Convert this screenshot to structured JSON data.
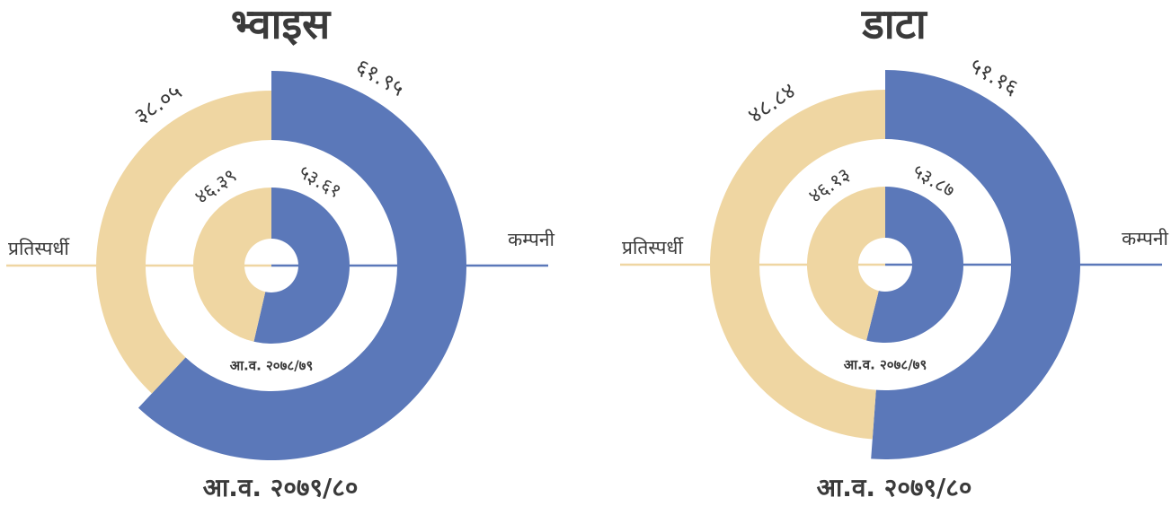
{
  "chart_data": [
    {
      "type": "donut",
      "title": "भ्वाइस",
      "categories": [
        "कम्पनी",
        "प्रतिस्पर्धी"
      ],
      "colors": [
        "#5b78b9",
        "#efd6a2"
      ],
      "series": [
        {
          "name": "आ.व. २०७९/८०",
          "values": [
            61.95,
            38.05
          ],
          "value_labels": [
            "६१.९५",
            "३८.०५"
          ]
        },
        {
          "name": "आ.व. २०७८/७९",
          "values": [
            53.61,
            46.39
          ],
          "value_labels": [
            "५३.६१",
            "४६.३९"
          ]
        }
      ]
    },
    {
      "type": "donut",
      "title": "डाटा",
      "categories": [
        "कम्पनी",
        "प्रतिस्पर्धी"
      ],
      "colors": [
        "#5b78b9",
        "#efd6a2"
      ],
      "series": [
        {
          "name": "आ.व. २०७९/८०",
          "values": [
            51.16,
            48.84
          ],
          "value_labels": [
            "५१.१६",
            "४८.८४"
          ]
        },
        {
          "name": "आ.व. २०७८/७९",
          "values": [
            53.87,
            46.13
          ],
          "value_labels": [
            "५३.८७",
            "४६.१३"
          ]
        }
      ]
    }
  ]
}
